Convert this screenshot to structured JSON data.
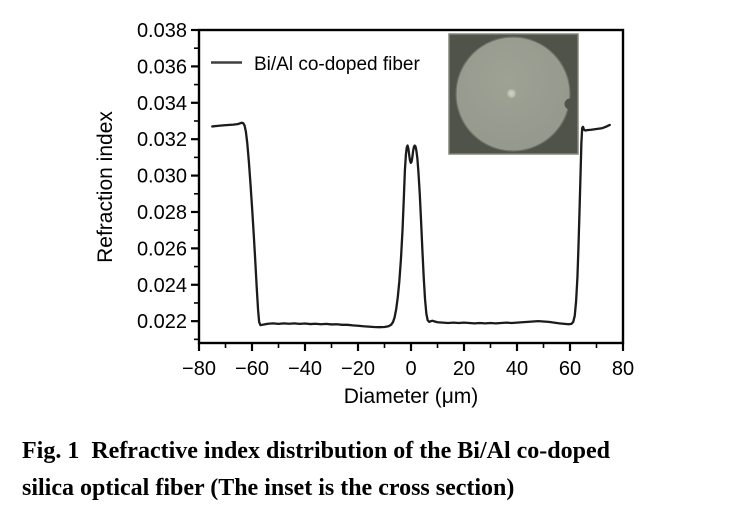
{
  "figure": {
    "caption": {
      "lines": [
        "Fig. 1  Refractive index distribution of the Bi/Al co-doped",
        "silica optical fiber (The inset is the cross section)"
      ]
    }
  },
  "chart_data": {
    "type": "line",
    "title": "",
    "xlabel": "Diameter (μm)",
    "ylabel": "Refraction index",
    "xlim": [
      -80,
      80
    ],
    "ylim": [
      0.0208,
      0.038
    ],
    "xticks": [
      -80,
      -60,
      -40,
      -20,
      0,
      20,
      40,
      60,
      80
    ],
    "yticks": [
      0.022,
      0.024,
      0.026,
      0.028,
      0.03,
      0.032,
      0.034,
      0.036,
      0.038
    ],
    "minor_ticks": "one minor tick midway between each pair of major ticks on both axes",
    "grid": false,
    "frame": "full box, ticks outside on left and bottom",
    "legend": {
      "position": "top-left-inside",
      "entries": [
        {
          "label": "Bi/Al co-doped fiber",
          "color": "#3f3f3f"
        }
      ]
    },
    "series": [
      {
        "name": "Bi/Al co-doped fiber",
        "color": "#1b1b1b",
        "points": [
          [
            -75,
            0.0327
          ],
          [
            -73,
            0.03273
          ],
          [
            -71,
            0.03276
          ],
          [
            -69,
            0.03278
          ],
          [
            -67,
            0.0328
          ],
          [
            -65.5,
            0.03283
          ],
          [
            -64.5,
            0.03287
          ],
          [
            -64,
            0.0329
          ],
          [
            -63.3,
            0.03288
          ],
          [
            -62.8,
            0.03275
          ],
          [
            -62.3,
            0.0324
          ],
          [
            -61.8,
            0.0318
          ],
          [
            -61.2,
            0.0308
          ],
          [
            -60.6,
            0.0296
          ],
          [
            -60,
            0.0283
          ],
          [
            -59.4,
            0.0269
          ],
          [
            -58.8,
            0.0254
          ],
          [
            -58.2,
            0.0238
          ],
          [
            -57.7,
            0.0226
          ],
          [
            -57.3,
            0.02195
          ],
          [
            -56.8,
            0.02178
          ],
          [
            -56,
            0.0218
          ],
          [
            -54,
            0.02186
          ],
          [
            -52,
            0.02188
          ],
          [
            -50,
            0.02185
          ],
          [
            -48,
            0.02188
          ],
          [
            -46,
            0.02186
          ],
          [
            -44,
            0.02188
          ],
          [
            -42,
            0.02185
          ],
          [
            -40,
            0.02187
          ],
          [
            -38,
            0.02184
          ],
          [
            -36,
            0.02186
          ],
          [
            -34,
            0.02183
          ],
          [
            -32,
            0.02185
          ],
          [
            -30,
            0.02182
          ],
          [
            -28,
            0.02183
          ],
          [
            -26,
            0.0218
          ],
          [
            -24,
            0.0218
          ],
          [
            -22,
            0.02177
          ],
          [
            -20,
            0.02175
          ],
          [
            -18,
            0.02172
          ],
          [
            -16,
            0.0217
          ],
          [
            -14,
            0.02168
          ],
          [
            -12,
            0.02167
          ],
          [
            -10,
            0.02168
          ],
          [
            -8.5,
            0.02172
          ],
          [
            -7.5,
            0.0218
          ],
          [
            -6.8,
            0.02195
          ],
          [
            -6.2,
            0.0222
          ],
          [
            -5.6,
            0.02265
          ],
          [
            -5,
            0.0233
          ],
          [
            -4.4,
            0.0242
          ],
          [
            -3.8,
            0.0254
          ],
          [
            -3.2,
            0.027
          ],
          [
            -2.7,
            0.0288
          ],
          [
            -2.3,
            0.0303
          ],
          [
            -1.9,
            0.0312
          ],
          [
            -1.6,
            0.03155
          ],
          [
            -1.3,
            0.03165
          ],
          [
            -1,
            0.0315
          ],
          [
            -0.7,
            0.03115
          ],
          [
            -0.4,
            0.03085
          ],
          [
            -0.1,
            0.0307
          ],
          [
            0.2,
            0.03075
          ],
          [
            0.5,
            0.031
          ],
          [
            0.8,
            0.03135
          ],
          [
            1.1,
            0.03158
          ],
          [
            1.4,
            0.03165
          ],
          [
            1.7,
            0.0316
          ],
          [
            2,
            0.0314
          ],
          [
            2.4,
            0.03095
          ],
          [
            2.8,
            0.0302
          ],
          [
            3.3,
            0.029
          ],
          [
            3.8,
            0.0275
          ],
          [
            4.3,
            0.0259
          ],
          [
            4.8,
            0.0244
          ],
          [
            5.3,
            0.0232
          ],
          [
            5.8,
            0.0224
          ],
          [
            6.3,
            0.02205
          ],
          [
            6.9,
            0.02196
          ],
          [
            7.5,
            0.022
          ],
          [
            8.2,
            0.02202
          ],
          [
            9,
            0.02198
          ],
          [
            10,
            0.02194
          ],
          [
            12,
            0.02192
          ],
          [
            14,
            0.0219
          ],
          [
            16,
            0.02192
          ],
          [
            18,
            0.0219
          ],
          [
            20,
            0.02192
          ],
          [
            22,
            0.0219
          ],
          [
            24,
            0.02188
          ],
          [
            26,
            0.0219
          ],
          [
            28,
            0.02188
          ],
          [
            30,
            0.0219
          ],
          [
            32,
            0.02188
          ],
          [
            34,
            0.0219
          ],
          [
            36,
            0.02192
          ],
          [
            38,
            0.0219
          ],
          [
            40,
            0.02192
          ],
          [
            42,
            0.02194
          ],
          [
            44,
            0.02196
          ],
          [
            46,
            0.02198
          ],
          [
            48,
            0.022
          ],
          [
            50,
            0.02198
          ],
          [
            52,
            0.02196
          ],
          [
            54,
            0.02192
          ],
          [
            56,
            0.02188
          ],
          [
            58,
            0.02185
          ],
          [
            59.5,
            0.02183
          ],
          [
            60.5,
            0.02185
          ],
          [
            61.2,
            0.02195
          ],
          [
            61.8,
            0.0223
          ],
          [
            62.3,
            0.0231
          ],
          [
            62.8,
            0.0244
          ],
          [
            63.2,
            0.0261
          ],
          [
            63.6,
            0.0281
          ],
          [
            64,
            0.0302
          ],
          [
            64.3,
            0.0318
          ],
          [
            64.6,
            0.03262
          ],
          [
            64.9,
            0.03268
          ],
          [
            65.3,
            0.03252
          ],
          [
            65.8,
            0.03248
          ],
          [
            66.5,
            0.0325
          ],
          [
            68,
            0.03252
          ],
          [
            70,
            0.03256
          ],
          [
            72,
            0.0326
          ],
          [
            73.5,
            0.03268
          ],
          [
            74.5,
            0.03275
          ],
          [
            75,
            0.03278
          ]
        ]
      }
    ],
    "inset": {
      "content": "optical fiber cross-section photograph with bright core dot at center",
      "background_color": "#50534a",
      "circle_color": "#94988c",
      "circle_highlight_color": "#9da295",
      "circle_edge_color": "#6e7264",
      "core_dot_color": "#d2d6c4",
      "border_color": "#83867a"
    }
  }
}
